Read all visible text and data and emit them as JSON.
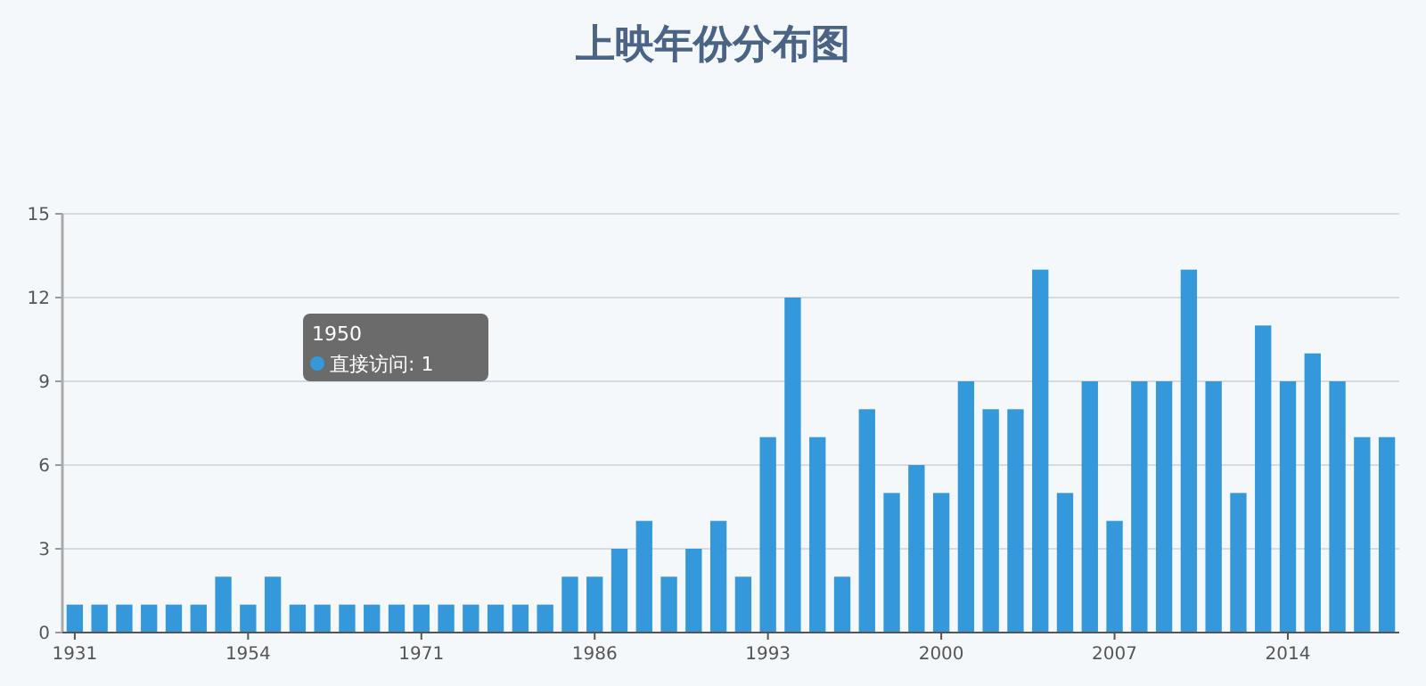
{
  "chart_data": {
    "type": "bar",
    "title": "上映年份分布图",
    "categories": [
      "1931",
      null,
      null,
      null,
      null,
      null,
      null,
      "1954",
      null,
      null,
      null,
      null,
      null,
      null,
      "1971",
      null,
      null,
      null,
      null,
      null,
      null,
      "1986",
      null,
      null,
      null,
      null,
      null,
      null,
      "1993",
      null,
      null,
      null,
      null,
      null,
      null,
      "2000",
      null,
      null,
      null,
      null,
      null,
      null,
      "2007",
      null,
      null,
      null,
      null,
      null,
      null,
      "2014",
      null,
      null,
      null,
      null
    ],
    "values": [
      1,
      1,
      1,
      1,
      1,
      1,
      2,
      1,
      2,
      1,
      1,
      1,
      1,
      1,
      1,
      1,
      1,
      1,
      1,
      1,
      2,
      2,
      3,
      4,
      2,
      3,
      4,
      2,
      7,
      12,
      7,
      2,
      8,
      5,
      6,
      5,
      9,
      8,
      8,
      13,
      5,
      9,
      4,
      9,
      9,
      13,
      9,
      5,
      11,
      9,
      10,
      9,
      7,
      7
    ],
    "color": "#3498db",
    "ylim": [
      0,
      15
    ],
    "yticks": [
      0,
      3,
      6,
      9,
      12,
      15
    ],
    "grid": "y",
    "annotations": [
      "1950",
      "直接访问: 1"
    ]
  }
}
